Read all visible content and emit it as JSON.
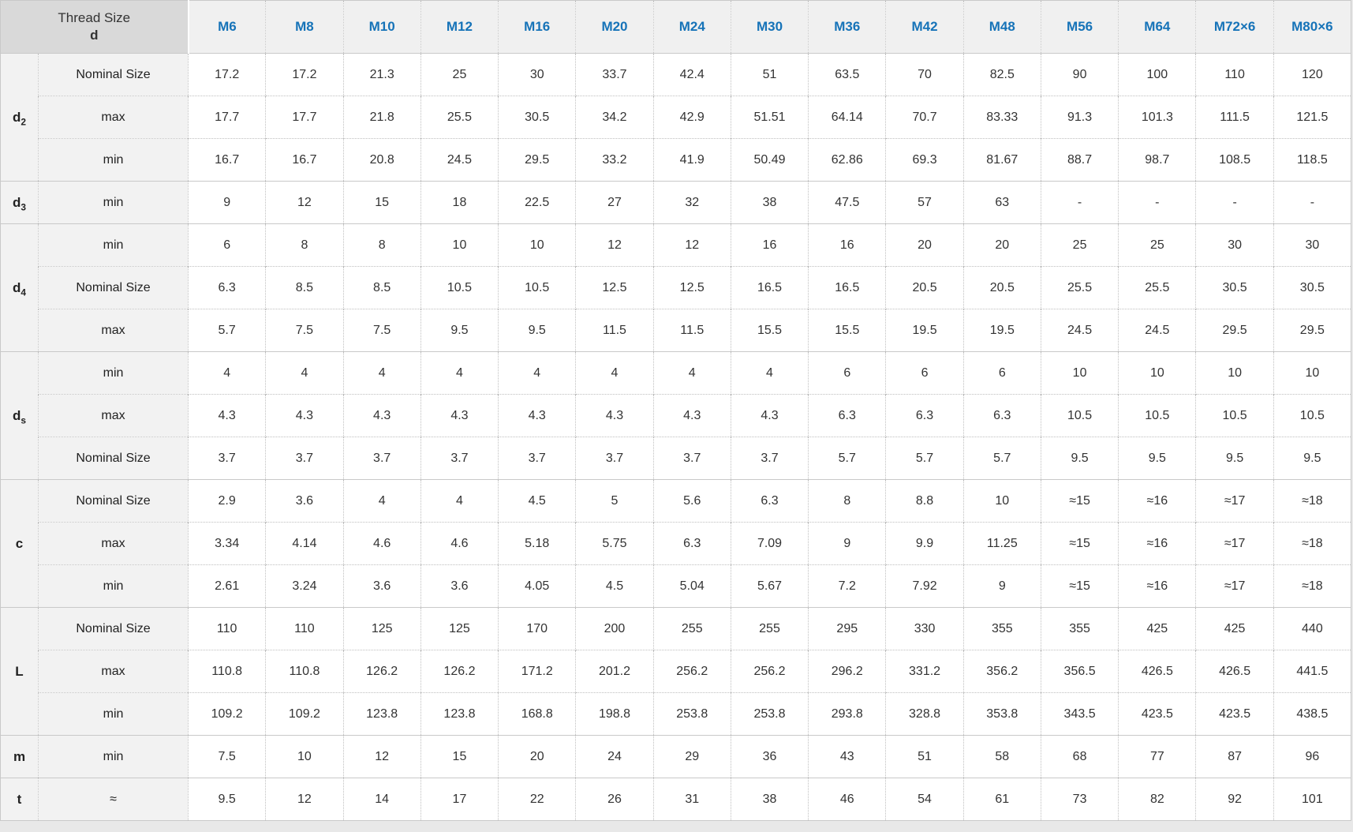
{
  "colors": {
    "page_background": "#e8e8e8",
    "header_text_blue": "#1673b8",
    "header_background": "#f0f0f0",
    "corner_background": "#d9d9d9",
    "label_background": "#f2f2f2",
    "cell_text": "#333333",
    "solid_border": "#c9c9c9",
    "dotted_border": "#bfbfbf"
  },
  "header": {
    "corner_line1": "Thread Size",
    "corner_line2": "d",
    "columns": [
      "M6",
      "M8",
      "M10",
      "M12",
      "M16",
      "M20",
      "M24",
      "M30",
      "M36",
      "M42",
      "M48",
      "M56",
      "M64",
      "M72×6",
      "M80×6"
    ]
  },
  "groups": [
    {
      "label": {
        "base": "d",
        "sub": "2"
      },
      "rows": [
        {
          "label": "Nominal Size",
          "values": [
            "17.2",
            "17.2",
            "21.3",
            "25",
            "30",
            "33.7",
            "42.4",
            "51",
            "63.5",
            "70",
            "82.5",
            "90",
            "100",
            "110",
            "120"
          ]
        },
        {
          "label": "max",
          "values": [
            "17.7",
            "17.7",
            "21.8",
            "25.5",
            "30.5",
            "34.2",
            "42.9",
            "51.51",
            "64.14",
            "70.7",
            "83.33",
            "91.3",
            "101.3",
            "111.5",
            "121.5"
          ]
        },
        {
          "label": "min",
          "values": [
            "16.7",
            "16.7",
            "20.8",
            "24.5",
            "29.5",
            "33.2",
            "41.9",
            "50.49",
            "62.86",
            "69.3",
            "81.67",
            "88.7",
            "98.7",
            "108.5",
            "118.5"
          ]
        }
      ]
    },
    {
      "label": {
        "base": "d",
        "sub": "3"
      },
      "rows": [
        {
          "label": "min",
          "values": [
            "9",
            "12",
            "15",
            "18",
            "22.5",
            "27",
            "32",
            "38",
            "47.5",
            "57",
            "63",
            "-",
            "-",
            "-",
            "-"
          ]
        }
      ]
    },
    {
      "label": {
        "base": "d",
        "sub": "4"
      },
      "rows": [
        {
          "label": "min",
          "values": [
            "6",
            "8",
            "8",
            "10",
            "10",
            "12",
            "12",
            "16",
            "16",
            "20",
            "20",
            "25",
            "25",
            "30",
            "30"
          ]
        },
        {
          "label": "Nominal Size",
          "values": [
            "6.3",
            "8.5",
            "8.5",
            "10.5",
            "10.5",
            "12.5",
            "12.5",
            "16.5",
            "16.5",
            "20.5",
            "20.5",
            "25.5",
            "25.5",
            "30.5",
            "30.5"
          ]
        },
        {
          "label": "max",
          "values": [
            "5.7",
            "7.5",
            "7.5",
            "9.5",
            "9.5",
            "11.5",
            "11.5",
            "15.5",
            "15.5",
            "19.5",
            "19.5",
            "24.5",
            "24.5",
            "29.5",
            "29.5"
          ]
        }
      ]
    },
    {
      "label": {
        "base": "d",
        "sub": "s"
      },
      "rows": [
        {
          "label": "min",
          "values": [
            "4",
            "4",
            "4",
            "4",
            "4",
            "4",
            "4",
            "4",
            "6",
            "6",
            "6",
            "10",
            "10",
            "10",
            "10"
          ]
        },
        {
          "label": "max",
          "values": [
            "4.3",
            "4.3",
            "4.3",
            "4.3",
            "4.3",
            "4.3",
            "4.3",
            "4.3",
            "6.3",
            "6.3",
            "6.3",
            "10.5",
            "10.5",
            "10.5",
            "10.5"
          ]
        },
        {
          "label": "Nominal Size",
          "values": [
            "3.7",
            "3.7",
            "3.7",
            "3.7",
            "3.7",
            "3.7",
            "3.7",
            "3.7",
            "5.7",
            "5.7",
            "5.7",
            "9.5",
            "9.5",
            "9.5",
            "9.5"
          ]
        }
      ]
    },
    {
      "label": {
        "base": "c",
        "sub": ""
      },
      "rows": [
        {
          "label": "Nominal Size",
          "values": [
            "2.9",
            "3.6",
            "4",
            "4",
            "4.5",
            "5",
            "5.6",
            "6.3",
            "8",
            "8.8",
            "10",
            "≈15",
            "≈16",
            "≈17",
            "≈18"
          ]
        },
        {
          "label": "max",
          "values": [
            "3.34",
            "4.14",
            "4.6",
            "4.6",
            "5.18",
            "5.75",
            "6.3",
            "7.09",
            "9",
            "9.9",
            "11.25",
            "≈15",
            "≈16",
            "≈17",
            "≈18"
          ]
        },
        {
          "label": "min",
          "values": [
            "2.61",
            "3.24",
            "3.6",
            "3.6",
            "4.05",
            "4.5",
            "5.04",
            "5.67",
            "7.2",
            "7.92",
            "9",
            "≈15",
            "≈16",
            "≈17",
            "≈18"
          ]
        }
      ]
    },
    {
      "label": {
        "base": "L",
        "sub": ""
      },
      "rows": [
        {
          "label": "Nominal Size",
          "values": [
            "110",
            "110",
            "125",
            "125",
            "170",
            "200",
            "255",
            "255",
            "295",
            "330",
            "355",
            "355",
            "425",
            "425",
            "440"
          ]
        },
        {
          "label": "max",
          "values": [
            "110.8",
            "110.8",
            "126.2",
            "126.2",
            "171.2",
            "201.2",
            "256.2",
            "256.2",
            "296.2",
            "331.2",
            "356.2",
            "356.5",
            "426.5",
            "426.5",
            "441.5"
          ]
        },
        {
          "label": "min",
          "values": [
            "109.2",
            "109.2",
            "123.8",
            "123.8",
            "168.8",
            "198.8",
            "253.8",
            "253.8",
            "293.8",
            "328.8",
            "353.8",
            "343.5",
            "423.5",
            "423.5",
            "438.5"
          ]
        }
      ]
    },
    {
      "label": {
        "base": "m",
        "sub": ""
      },
      "rows": [
        {
          "label": "min",
          "values": [
            "7.5",
            "10",
            "12",
            "15",
            "20",
            "24",
            "29",
            "36",
            "43",
            "51",
            "58",
            "68",
            "77",
            "87",
            "96"
          ]
        }
      ]
    },
    {
      "label": {
        "base": "t",
        "sub": ""
      },
      "rows": [
        {
          "label": "≈",
          "values": [
            "9.5",
            "12",
            "14",
            "17",
            "22",
            "26",
            "31",
            "38",
            "46",
            "54",
            "61",
            "73",
            "82",
            "92",
            "101"
          ]
        }
      ]
    }
  ]
}
